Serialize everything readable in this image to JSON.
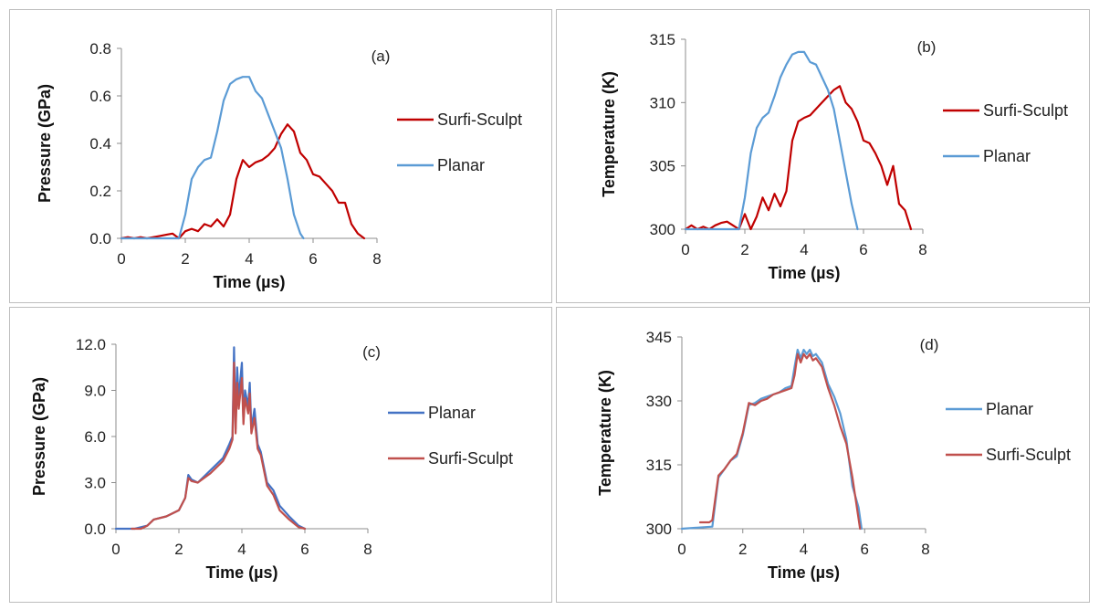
{
  "chart_data": [
    {
      "id": "a",
      "type": "line",
      "panel_label": "(a)",
      "xlabel": "Time (µs)",
      "ylabel": "Pressure (GPa)",
      "xlim": [
        0,
        8
      ],
      "ylim": [
        0,
        0.8
      ],
      "xticks": [
        0,
        2,
        4,
        6,
        8
      ],
      "yticks": [
        0,
        0.2,
        0.4,
        0.6,
        0.8
      ],
      "ytick_labels": [
        "0.0",
        "0.2",
        "0.4",
        "0.6",
        "0.8"
      ],
      "legend_position": "right",
      "series": [
        {
          "name": "Surfi-Sculpt",
          "color": "#c00000",
          "x": [
            0,
            0.2,
            0.4,
            0.6,
            0.8,
            1.0,
            1.2,
            1.4,
            1.6,
            1.8,
            2.0,
            2.2,
            2.4,
            2.6,
            2.8,
            3.0,
            3.2,
            3.4,
            3.6,
            3.8,
            4.0,
            4.2,
            4.4,
            4.6,
            4.8,
            5.0,
            5.2,
            5.4,
            5.6,
            5.8,
            6.0,
            6.2,
            6.4,
            6.6,
            6.8,
            7.0,
            7.2,
            7.4,
            7.6
          ],
          "y": [
            0.0,
            0.005,
            0.0,
            0.005,
            0.0,
            0.005,
            0.01,
            0.015,
            0.02,
            0.0,
            0.03,
            0.04,
            0.03,
            0.06,
            0.05,
            0.08,
            0.05,
            0.1,
            0.25,
            0.33,
            0.3,
            0.32,
            0.33,
            0.35,
            0.38,
            0.44,
            0.48,
            0.45,
            0.36,
            0.33,
            0.27,
            0.26,
            0.23,
            0.2,
            0.15,
            0.15,
            0.06,
            0.02,
            0.0
          ]
        },
        {
          "name": "Planar",
          "color": "#5b9bd5",
          "x": [
            0,
            1.8,
            2.0,
            2.2,
            2.4,
            2.6,
            2.8,
            3.0,
            3.2,
            3.4,
            3.6,
            3.8,
            4.0,
            4.2,
            4.4,
            4.6,
            4.8,
            5.0,
            5.2,
            5.4,
            5.6,
            5.7
          ],
          "y": [
            0.0,
            0.0,
            0.1,
            0.25,
            0.3,
            0.33,
            0.34,
            0.45,
            0.58,
            0.65,
            0.67,
            0.68,
            0.68,
            0.62,
            0.59,
            0.52,
            0.45,
            0.38,
            0.25,
            0.1,
            0.02,
            0.0
          ]
        }
      ]
    },
    {
      "id": "b",
      "type": "line",
      "panel_label": "(b)",
      "xlabel": "Time (µs)",
      "ylabel": "Temperature (K)",
      "xlim": [
        0,
        8
      ],
      "ylim": [
        300,
        315
      ],
      "xticks": [
        0,
        2,
        4,
        6,
        8
      ],
      "yticks": [
        300,
        305,
        310,
        315
      ],
      "ytick_labels": [
        "300",
        "305",
        "310",
        "315"
      ],
      "legend_position": "right",
      "series": [
        {
          "name": "Surfi-Sculpt",
          "color": "#c00000",
          "x": [
            0,
            0.2,
            0.4,
            0.6,
            0.8,
            1.0,
            1.2,
            1.4,
            1.6,
            1.8,
            2.0,
            2.2,
            2.4,
            2.6,
            2.8,
            3.0,
            3.2,
            3.4,
            3.6,
            3.8,
            4.0,
            4.2,
            4.4,
            4.6,
            4.8,
            5.0,
            5.2,
            5.4,
            5.6,
            5.8,
            6.0,
            6.2,
            6.4,
            6.6,
            6.8,
            7.0,
            7.2,
            7.4,
            7.6
          ],
          "y": [
            300.0,
            300.3,
            300.0,
            300.2,
            300.0,
            300.3,
            300.5,
            300.6,
            300.3,
            300.0,
            301.2,
            300.0,
            301.0,
            302.5,
            301.5,
            302.8,
            301.8,
            303.0,
            307.0,
            308.5,
            308.8,
            309.0,
            309.5,
            310.0,
            310.5,
            311.0,
            311.3,
            310.0,
            309.5,
            308.5,
            307.0,
            306.8,
            306.0,
            305.0,
            303.5,
            305.0,
            302.0,
            301.5,
            300.0
          ]
        },
        {
          "name": "Planar",
          "color": "#5b9bd5",
          "x": [
            0,
            1.8,
            2.0,
            2.2,
            2.4,
            2.6,
            2.8,
            3.0,
            3.2,
            3.4,
            3.6,
            3.8,
            4.0,
            4.2,
            4.4,
            4.6,
            4.8,
            5.0,
            5.2,
            5.4,
            5.6,
            5.8
          ],
          "y": [
            300.0,
            300.0,
            302.5,
            306.0,
            308.0,
            308.8,
            309.2,
            310.5,
            312.0,
            313.0,
            313.8,
            314.0,
            314.0,
            313.2,
            313.0,
            312.0,
            311.0,
            309.5,
            307.0,
            304.5,
            302.0,
            300.0
          ]
        }
      ]
    },
    {
      "id": "c",
      "type": "line",
      "panel_label": "(c)",
      "xlabel": "Time (µs)",
      "ylabel": "Pressure (GPa)",
      "xlim": [
        0,
        8
      ],
      "ylim": [
        0,
        12
      ],
      "xticks": [
        0,
        2,
        4,
        6,
        8
      ],
      "yticks": [
        0,
        3,
        6,
        9,
        12
      ],
      "ytick_labels": [
        "0.0",
        "3.0",
        "6.0",
        "9.0",
        "12.0"
      ],
      "legend_position": "right",
      "series": [
        {
          "name": "Planar",
          "color": "#4472c4",
          "x": [
            0,
            0.6,
            1.0,
            1.2,
            1.6,
            2.0,
            2.2,
            2.3,
            2.4,
            2.6,
            3.0,
            3.4,
            3.6,
            3.7,
            3.75,
            3.8,
            3.85,
            3.9,
            4.0,
            4.05,
            4.1,
            4.2,
            4.25,
            4.3,
            4.4,
            4.5,
            4.6,
            4.8,
            5.0,
            5.2,
            5.5,
            5.8,
            6.0
          ],
          "y": [
            0.0,
            0.0,
            0.2,
            0.6,
            0.8,
            1.2,
            2.0,
            3.5,
            3.2,
            3.0,
            3.8,
            4.6,
            5.5,
            6.0,
            11.8,
            6.5,
            10.5,
            8.5,
            10.8,
            7.0,
            9.0,
            8.0,
            9.5,
            6.5,
            7.8,
            5.5,
            5.0,
            3.0,
            2.5,
            1.5,
            0.8,
            0.2,
            0.0
          ]
        },
        {
          "name": "Surfi-Sculpt",
          "color": "#c0504d",
          "x": [
            0.5,
            0.8,
            1.0,
            1.2,
            1.6,
            2.0,
            2.2,
            2.3,
            2.4,
            2.6,
            3.0,
            3.4,
            3.6,
            3.7,
            3.75,
            3.8,
            3.85,
            3.9,
            4.0,
            4.05,
            4.1,
            4.2,
            4.25,
            4.3,
            4.4,
            4.5,
            4.6,
            4.8,
            5.0,
            5.2,
            5.5,
            5.8,
            6.0
          ],
          "y": [
            0.0,
            0.0,
            0.2,
            0.6,
            0.8,
            1.2,
            2.0,
            3.3,
            3.1,
            3.0,
            3.6,
            4.4,
            5.2,
            5.8,
            10.8,
            6.2,
            9.5,
            7.8,
            9.8,
            6.8,
            8.5,
            7.5,
            8.8,
            6.2,
            7.2,
            5.2,
            4.8,
            2.8,
            2.2,
            1.2,
            0.6,
            0.1,
            0.0
          ]
        }
      ]
    },
    {
      "id": "d",
      "type": "line",
      "panel_label": "(d)",
      "xlabel": "Time (µs)",
      "ylabel": "Temperature (K)",
      "xlim": [
        0,
        8
      ],
      "ylim": [
        300,
        345
      ],
      "xticks": [
        0,
        2,
        4,
        6,
        8
      ],
      "yticks": [
        300,
        315,
        330,
        345
      ],
      "ytick_labels": [
        "300",
        "315",
        "330",
        "345"
      ],
      "legend_position": "right",
      "series": [
        {
          "name": "Planar",
          "color": "#5b9bd5",
          "x": [
            0,
            1.0,
            1.2,
            1.4,
            1.6,
            1.8,
            2.0,
            2.2,
            2.4,
            2.6,
            2.8,
            3.0,
            3.2,
            3.4,
            3.6,
            3.7,
            3.8,
            3.9,
            4.0,
            4.1,
            4.2,
            4.3,
            4.4,
            4.6,
            4.8,
            5.0,
            5.2,
            5.4,
            5.6,
            5.8,
            5.9
          ],
          "y": [
            300.0,
            300.5,
            312.0,
            314.0,
            316.0,
            317.0,
            322.0,
            329.0,
            329.5,
            330.5,
            331.0,
            331.5,
            332.0,
            333.0,
            333.5,
            338.0,
            342.0,
            340.0,
            342.0,
            341.0,
            342.0,
            340.5,
            341.0,
            339.0,
            334.0,
            331.0,
            327.0,
            321.0,
            310.0,
            305.0,
            300.0
          ]
        },
        {
          "name": "Surfi-Sculpt",
          "color": "#c0504d",
          "x": [
            0.6,
            0.9,
            1.0,
            1.2,
            1.4,
            1.6,
            1.8,
            2.0,
            2.2,
            2.4,
            2.6,
            2.8,
            3.0,
            3.2,
            3.4,
            3.6,
            3.7,
            3.8,
            3.9,
            4.0,
            4.1,
            4.2,
            4.3,
            4.4,
            4.6,
            4.8,
            5.0,
            5.2,
            5.4,
            5.6,
            5.85
          ],
          "y": [
            301.5,
            301.5,
            302.0,
            312.5,
            314.0,
            316.0,
            317.5,
            322.5,
            329.5,
            329.0,
            330.0,
            330.5,
            331.5,
            332.0,
            332.5,
            333.0,
            336.0,
            341.0,
            339.0,
            341.0,
            340.0,
            341.0,
            339.5,
            340.0,
            338.0,
            333.0,
            329.0,
            324.0,
            320.0,
            312.0,
            300.0
          ]
        }
      ]
    }
  ]
}
